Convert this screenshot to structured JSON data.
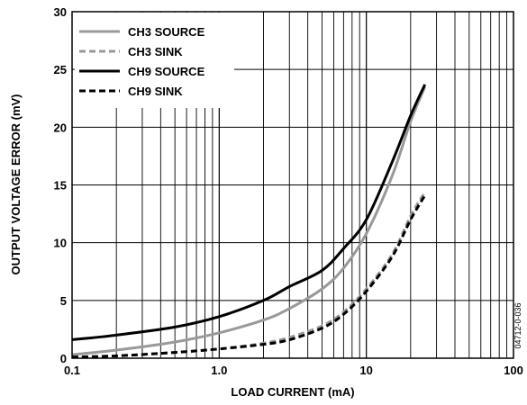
{
  "chart_data": {
    "type": "line",
    "x_scale": "log",
    "xlim": [
      0.1,
      100
    ],
    "ylim": [
      0,
      30
    ],
    "xlabel": "LOAD CURRENT (mA)",
    "ylabel": "OUTPUT VOLTAGE ERROR (mV)",
    "x_tick_labels": [
      "0.1",
      "1.0",
      "10",
      "100"
    ],
    "y_tick_labels": [
      "0",
      "5",
      "10",
      "15",
      "20",
      "25",
      "30"
    ],
    "grid": true,
    "legend_position": "top-left",
    "figure_id": "04712-0-036",
    "series": [
      {
        "name": "CH3 SOURCE",
        "color": "#999999",
        "dash": "solid",
        "x": [
          0.1,
          0.2,
          0.5,
          1,
          2,
          3,
          5,
          7,
          10,
          15,
          20,
          25
        ],
        "y": [
          0.3,
          0.7,
          1.4,
          2.2,
          3.3,
          4.3,
          6.0,
          7.8,
          10.8,
          15.8,
          20.5,
          23.5
        ]
      },
      {
        "name": "CH3 SINK",
        "color": "#999999",
        "dash": "dashed",
        "x": [
          0.1,
          0.2,
          0.5,
          1,
          2,
          3,
          5,
          7,
          10,
          15,
          20,
          25
        ],
        "y": [
          0.1,
          0.2,
          0.5,
          0.8,
          1.3,
          1.8,
          2.8,
          4.0,
          6.0,
          9.0,
          12.3,
          14.4
        ]
      },
      {
        "name": "CH9 SOURCE",
        "color": "#000000",
        "dash": "solid",
        "x": [
          0.1,
          0.2,
          0.5,
          1,
          2,
          3,
          5,
          7,
          10,
          15,
          20,
          25
        ],
        "y": [
          1.6,
          2.0,
          2.7,
          3.6,
          5.0,
          6.2,
          7.6,
          9.5,
          12.0,
          17.0,
          21.0,
          23.7
        ]
      },
      {
        "name": "CH9 SINK",
        "color": "#000000",
        "dash": "dashed",
        "x": [
          0.1,
          0.2,
          0.5,
          1,
          2,
          3,
          5,
          7,
          10,
          15,
          20,
          25
        ],
        "y": [
          0.1,
          0.2,
          0.5,
          0.8,
          1.2,
          1.6,
          2.6,
          3.8,
          5.8,
          8.8,
          12.0,
          14.1
        ]
      }
    ]
  }
}
